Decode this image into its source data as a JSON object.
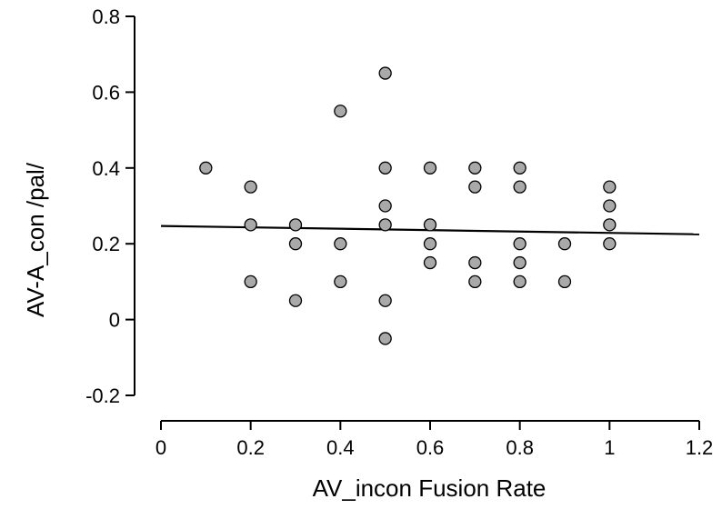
{
  "chart_data": {
    "type": "scatter",
    "title": "",
    "xlabel": "AV_incon Fusion Rate",
    "ylabel": "AV-A_con /pal/",
    "xlim": [
      0,
      1.2
    ],
    "ylim": [
      -0.2,
      0.8
    ],
    "x_ticks": [
      "0",
      "0.2",
      "0.4",
      "0.6",
      "0.8",
      "1",
      "1.2"
    ],
    "y_ticks": [
      "-0.2",
      "0",
      "0.2",
      "0.4",
      "0.6",
      "0.8"
    ],
    "x_tick_values": [
      0,
      0.2,
      0.4,
      0.6,
      0.8,
      1.0,
      1.2
    ],
    "y_tick_values": [
      -0.2,
      0,
      0.2,
      0.4,
      0.6,
      0.8
    ],
    "grid": false,
    "points": [
      {
        "x": 0.1,
        "y": 0.4
      },
      {
        "x": 0.2,
        "y": 0.35
      },
      {
        "x": 0.2,
        "y": 0.25
      },
      {
        "x": 0.2,
        "y": 0.1
      },
      {
        "x": 0.3,
        "y": 0.25
      },
      {
        "x": 0.3,
        "y": 0.2
      },
      {
        "x": 0.3,
        "y": 0.05
      },
      {
        "x": 0.4,
        "y": 0.55
      },
      {
        "x": 0.4,
        "y": 0.2
      },
      {
        "x": 0.4,
        "y": 0.1
      },
      {
        "x": 0.5,
        "y": 0.65
      },
      {
        "x": 0.5,
        "y": 0.4
      },
      {
        "x": 0.5,
        "y": 0.3
      },
      {
        "x": 0.5,
        "y": 0.25
      },
      {
        "x": 0.5,
        "y": 0.05
      },
      {
        "x": 0.5,
        "y": -0.05
      },
      {
        "x": 0.6,
        "y": 0.4
      },
      {
        "x": 0.6,
        "y": 0.25
      },
      {
        "x": 0.6,
        "y": 0.2
      },
      {
        "x": 0.6,
        "y": 0.15
      },
      {
        "x": 0.7,
        "y": 0.4
      },
      {
        "x": 0.7,
        "y": 0.35
      },
      {
        "x": 0.7,
        "y": 0.15
      },
      {
        "x": 0.7,
        "y": 0.1
      },
      {
        "x": 0.8,
        "y": 0.4
      },
      {
        "x": 0.8,
        "y": 0.35
      },
      {
        "x": 0.8,
        "y": 0.2
      },
      {
        "x": 0.8,
        "y": 0.15
      },
      {
        "x": 0.8,
        "y": 0.1
      },
      {
        "x": 0.9,
        "y": 0.2
      },
      {
        "x": 0.9,
        "y": 0.1
      },
      {
        "x": 1.0,
        "y": 0.35
      },
      {
        "x": 1.0,
        "y": 0.3
      },
      {
        "x": 1.0,
        "y": 0.25
      },
      {
        "x": 1.0,
        "y": 0.2
      }
    ],
    "fit_line": {
      "x": [
        0,
        1.2
      ],
      "y": [
        0.247,
        0.225
      ]
    },
    "colors": {
      "marker_fill": "#a9a9a9",
      "marker_edge": "#000000",
      "line": "#000000"
    }
  }
}
